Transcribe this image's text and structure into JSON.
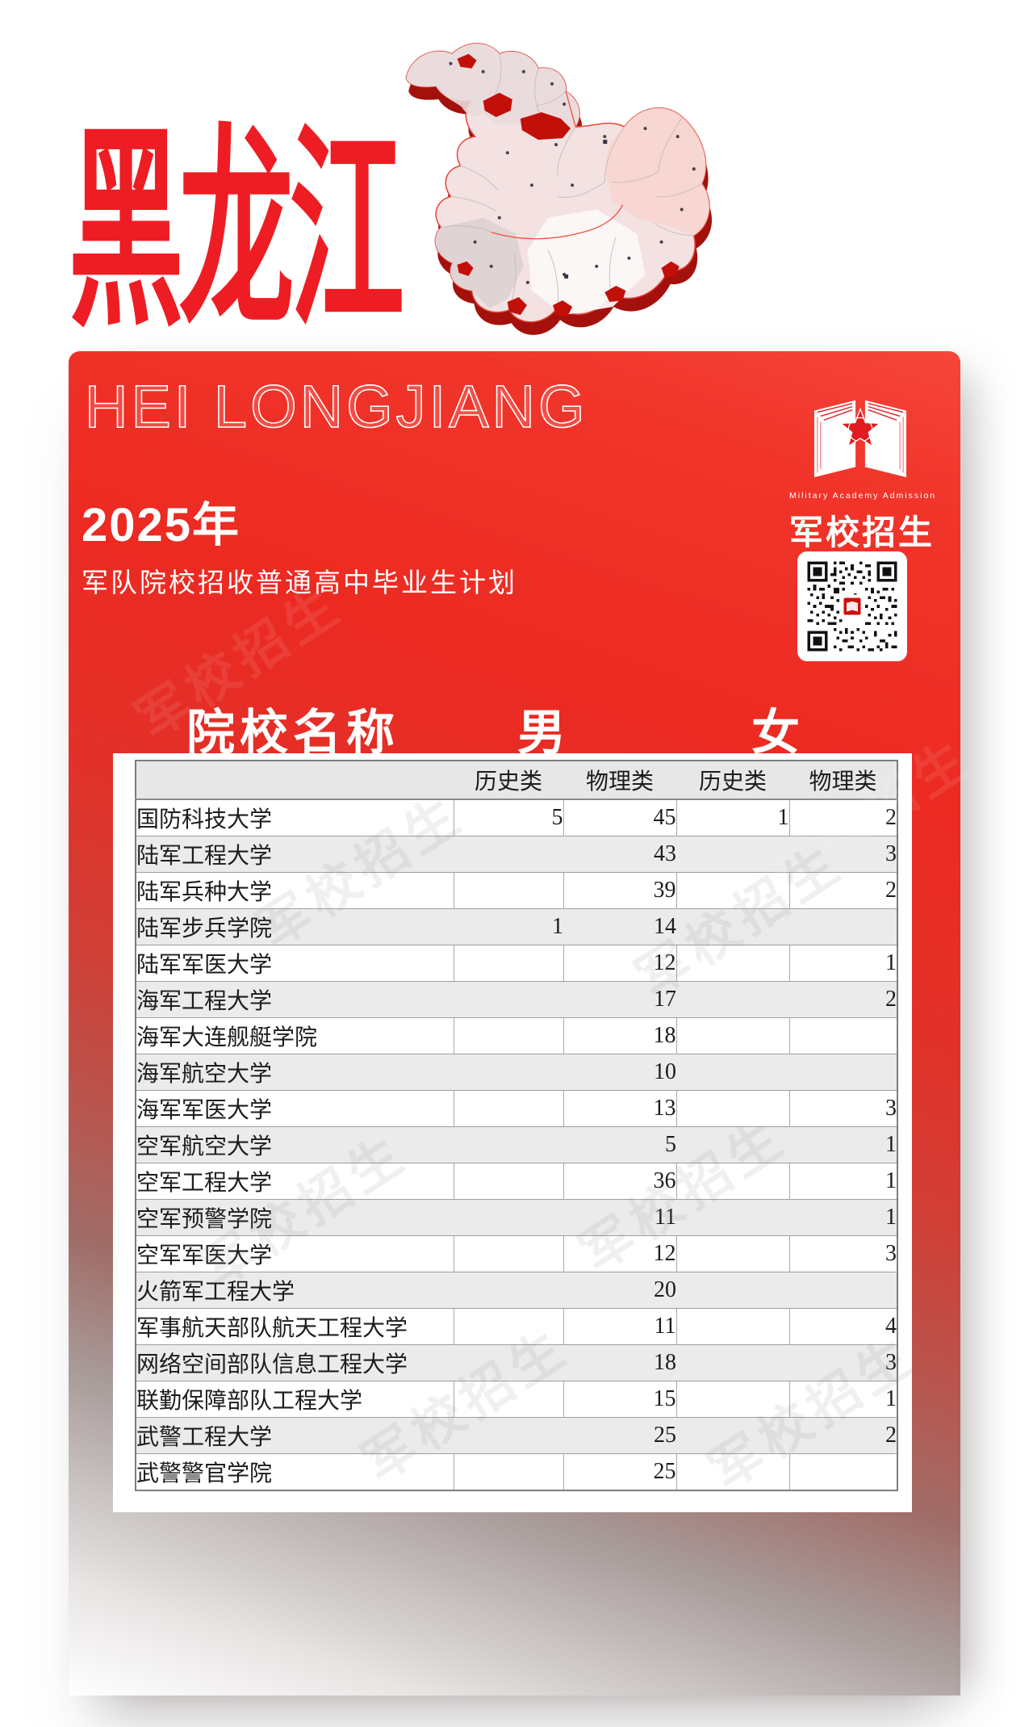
{
  "title": {
    "cn": "黑龙江",
    "en": "HEI LONGJIANG"
  },
  "intro": {
    "year": "2025年",
    "plan": "军队院校招收普通高中毕业生计划"
  },
  "brand": {
    "tagline": "Military Academy Admission",
    "name": "军校招生"
  },
  "watermark": "军校招生",
  "colors": {
    "accent": "#ee1d23",
    "map_shadow": "#a4110c",
    "stripe": "#ebebeb"
  },
  "table": {
    "group_headers": {
      "name": "院校名称",
      "male": "男",
      "female": "女"
    },
    "sub_headers": [
      "",
      "历史类",
      "物理类",
      "历史类",
      "物理类"
    ],
    "rows": [
      {
        "school": "国防科技大学",
        "male_history": "5",
        "male_physics": "45",
        "female_history": "1",
        "female_physics": "2"
      },
      {
        "school": "陆军工程大学",
        "male_history": "",
        "male_physics": "43",
        "female_history": "",
        "female_physics": "3"
      },
      {
        "school": "陆军兵种大学",
        "male_history": "",
        "male_physics": "39",
        "female_history": "",
        "female_physics": "2"
      },
      {
        "school": "陆军步兵学院",
        "male_history": "1",
        "male_physics": "14",
        "female_history": "",
        "female_physics": ""
      },
      {
        "school": "陆军军医大学",
        "male_history": "",
        "male_physics": "12",
        "female_history": "",
        "female_physics": "1"
      },
      {
        "school": "海军工程大学",
        "male_history": "",
        "male_physics": "17",
        "female_history": "",
        "female_physics": "2"
      },
      {
        "school": "海军大连舰艇学院",
        "male_history": "",
        "male_physics": "18",
        "female_history": "",
        "female_physics": ""
      },
      {
        "school": "海军航空大学",
        "male_history": "",
        "male_physics": "10",
        "female_history": "",
        "female_physics": ""
      },
      {
        "school": "海军军医大学",
        "male_history": "",
        "male_physics": "13",
        "female_history": "",
        "female_physics": "3"
      },
      {
        "school": "空军航空大学",
        "male_history": "",
        "male_physics": "5",
        "female_history": "",
        "female_physics": "1"
      },
      {
        "school": "空军工程大学",
        "male_history": "",
        "male_physics": "36",
        "female_history": "",
        "female_physics": "1"
      },
      {
        "school": "空军预警学院",
        "male_history": "",
        "male_physics": "11",
        "female_history": "",
        "female_physics": "1"
      },
      {
        "school": "空军军医大学",
        "male_history": "",
        "male_physics": "12",
        "female_history": "",
        "female_physics": "3"
      },
      {
        "school": "火箭军工程大学",
        "male_history": "",
        "male_physics": "20",
        "female_history": "",
        "female_physics": ""
      },
      {
        "school": "军事航天部队航天工程大学",
        "male_history": "",
        "male_physics": "11",
        "female_history": "",
        "female_physics": "4"
      },
      {
        "school": "网络空间部队信息工程大学",
        "male_history": "",
        "male_physics": "18",
        "female_history": "",
        "female_physics": "3"
      },
      {
        "school": "联勤保障部队工程大学",
        "male_history": "",
        "male_physics": "15",
        "female_history": "",
        "female_physics": "1"
      },
      {
        "school": "武警工程大学",
        "male_history": "",
        "male_physics": "25",
        "female_history": "",
        "female_physics": "2"
      },
      {
        "school": "武警警官学院",
        "male_history": "",
        "male_physics": "25",
        "female_history": "",
        "female_physics": ""
      }
    ]
  }
}
